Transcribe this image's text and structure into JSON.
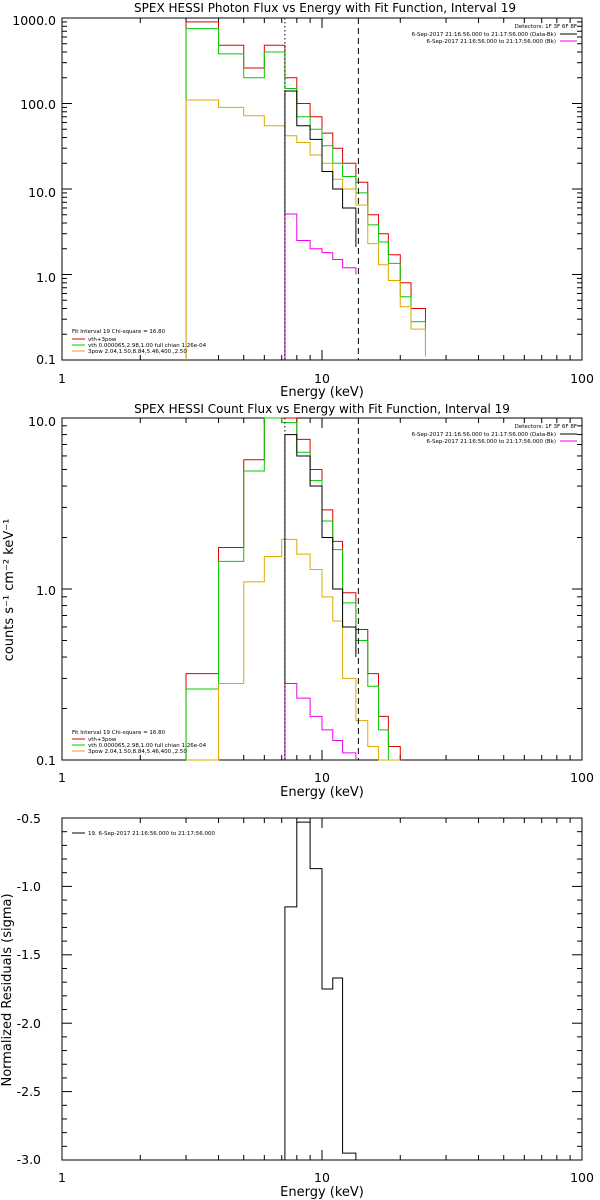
{
  "chart_data": [
    {
      "type": "line",
      "title": "SPEX HESSI Photon Flux vs Energy with Fit Function, Interval 19",
      "xlabel": "Energy (keV)",
      "ylabel": "",
      "xscale": "log",
      "yscale": "log",
      "xlim": [
        1,
        100
      ],
      "ylim": [
        0.1,
        1000.0
      ],
      "x_ticks": [
        "1",
        "10",
        "100"
      ],
      "y_ticks": [
        "0.1",
        "1.0",
        "10.0",
        "100.0",
        "1000.0"
      ],
      "info_top_right": [
        "Detectors: 1F 3F 6F 8F",
        "6-Sep-2017 21:16:56.000 to 21:17:56.000 (Data-Bk)",
        "6-Sep-2017 21:16:56.000 to 21:17:56.000 (Bk)"
      ],
      "fit_legend": [
        "Fit Interval 19   Chi-square = 16.80",
        "vth+3pow",
        "vth 0.000065,2.98,1.00   full chian 1.26e-04",
        "3pow 2.04,1.50,8.84,5.46,400.,2.50"
      ],
      "dotted_marker_kev": 7.2,
      "dashed_marker_kev": 13.8,
      "series": [
        {
          "name": "vth+3pow",
          "color": "#e00000",
          "edges": [
            3.0,
            4.0,
            5.0,
            6.0,
            7.2,
            8.0,
            9.0,
            10.0,
            11.0,
            12.0,
            13.5,
            15.0,
            16.5,
            18.0,
            20.0,
            22.0,
            25.0
          ],
          "values": [
            900,
            480,
            260,
            480,
            200,
            100,
            70,
            45,
            30,
            20,
            12,
            5.0,
            3.0,
            1.7,
            0.8,
            0.4,
            0.18
          ]
        },
        {
          "name": "vth",
          "color": "#00cc00",
          "edges": [
            3.0,
            4.0,
            5.0,
            6.0,
            7.2,
            8.0,
            9.0,
            10.0,
            11.0,
            12.0,
            13.5,
            15.0,
            16.5,
            18.0,
            20.0,
            22.0,
            25.0
          ],
          "values": [
            750,
            380,
            200,
            400,
            150,
            70,
            50,
            32,
            20,
            14,
            9,
            3.8,
            2.4,
            1.35,
            0.55,
            0.28,
            0.13
          ]
        },
        {
          "name": "3pow",
          "color": "#ddaa00",
          "edges": [
            3.0,
            4.0,
            5.0,
            6.0,
            7.2,
            8.0,
            9.0,
            10.0,
            11.0,
            12.0,
            13.5,
            15.0,
            16.5,
            18.0,
            20.0,
            22.0,
            25.0
          ],
          "values": [
            110,
            90,
            72,
            55,
            42,
            35,
            25,
            20,
            13,
            10,
            6.5,
            2.3,
            1.3,
            0.85,
            0.42,
            0.23,
            0.11
          ]
        },
        {
          "name": "Data-Bk",
          "color": "#000000",
          "edges": [
            7.2,
            8.0,
            9.0,
            10.0,
            11.0,
            12.0,
            13.5
          ],
          "values": [
            140,
            55,
            38,
            16,
            10,
            6,
            2.1
          ]
        },
        {
          "name": "Bk",
          "color": "#ee00ee",
          "edges": [
            7.2,
            8.0,
            9.0,
            10.0,
            11.0,
            12.0,
            13.5
          ],
          "values": [
            5.1,
            2.5,
            2.0,
            1.8,
            1.5,
            1.2,
            1.0
          ]
        }
      ]
    },
    {
      "type": "line",
      "title": "SPEX HESSI Count Flux vs Energy with Fit Function, Interval 19",
      "xlabel": "Energy (keV)",
      "ylabel": "counts s⁻¹ cm⁻² keV⁻¹",
      "xscale": "log",
      "yscale": "log",
      "xlim": [
        1,
        100
      ],
      "ylim": [
        0.1,
        10.0
      ],
      "x_ticks": [
        "1",
        "10",
        "100"
      ],
      "y_ticks": [
        "0.1",
        "1.0",
        "10.0"
      ],
      "info_top_right": [
        "Detectors: 1F 3F 6F 8F",
        "6-Sep-2017 21:16:56.000 to 21:17:56.000 (Data-Bk)",
        "6-Sep-2017 21:16:56.000 to 21:17:56.000 (Bk)"
      ],
      "fit_legend": [
        "Fit Interval 19   Chi-square = 16.80",
        "vth+3pow",
        "vth 0.000065,2.98,1.00   full chian 1.26e-04",
        "3pow 2.04,1.50,8.84,5.46,400.,2.50"
      ],
      "dotted_marker_kev": 7.2,
      "dashed_marker_kev": 13.8,
      "series": [
        {
          "name": "vth+3pow",
          "color": "#e00000",
          "edges": [
            3.0,
            4.0,
            5.0,
            6.0,
            7.0,
            8.0,
            9.0,
            10.0,
            11.0,
            12.0,
            13.5,
            15.0,
            16.5,
            18.0,
            20.0
          ],
          "values": [
            0.32,
            1.75,
            5.7,
            10.0,
            10.0,
            7.5,
            5.0,
            2.9,
            1.9,
            0.95,
            0.58,
            0.32,
            0.18,
            0.12
          ]
        },
        {
          "name": "vth",
          "color": "#00cc00",
          "edges": [
            3.0,
            4.0,
            5.0,
            6.0,
            7.0,
            8.0,
            9.0,
            10.0,
            11.0,
            12.0,
            13.5,
            15.0,
            16.5,
            18.0,
            20.0
          ],
          "values": [
            0.26,
            1.45,
            4.9,
            10.0,
            9.4,
            6.3,
            4.3,
            2.5,
            1.7,
            0.83,
            0.5,
            0.27,
            0.15,
            0.1
          ]
        },
        {
          "name": "3pow",
          "color": "#ddaa00",
          "edges": [
            3.0,
            4.0,
            5.0,
            6.0,
            7.0,
            8.0,
            9.0,
            10.0,
            11.0,
            12.0,
            13.5,
            15.0,
            16.5,
            18.0,
            20.0
          ],
          "values": [
            0.1,
            0.28,
            1.1,
            1.55,
            1.95,
            1.6,
            1.3,
            0.9,
            0.65,
            0.3,
            0.17,
            0.12,
            0.1,
            0.1
          ]
        },
        {
          "name": "Data-Bk",
          "color": "#000000",
          "edges": [
            7.2,
            8.0,
            9.0,
            10.0,
            11.0,
            12.0,
            13.5
          ],
          "values": [
            8.0,
            6.0,
            4.0,
            2.0,
            1.0,
            0.6,
            0.4
          ]
        },
        {
          "name": "Bk",
          "color": "#ee00ee",
          "edges": [
            7.2,
            8.0,
            9.0,
            10.0,
            11.0,
            12.0,
            13.5
          ],
          "values": [
            0.28,
            0.23,
            0.18,
            0.15,
            0.13,
            0.11,
            0.1
          ]
        }
      ]
    },
    {
      "type": "line",
      "title": "",
      "xlabel": "Energy (keV)",
      "ylabel": "Normalized Residuals (sigma)",
      "xscale": "log",
      "yscale": "linear",
      "xlim": [
        1,
        100
      ],
      "ylim": [
        -3.0,
        -0.5
      ],
      "x_ticks": [
        "1",
        "10",
        "100"
      ],
      "y_ticks": [
        "-3.0",
        "-2.5",
        "-2.0",
        "-1.5",
        "-1.0",
        "-0.5"
      ],
      "legend": "19.  6-Sep-2017 21:16:56.000 to 21:17:56.000",
      "series": [
        {
          "name": "19.  6-Sep-2017 21:16:56.000 to 21:17:56.000",
          "color": "#000000",
          "edges": [
            7.2,
            8.0,
            9.0,
            10.0,
            11.0,
            12.0,
            13.5
          ],
          "values": [
            -1.15,
            -0.53,
            -0.87,
            -1.75,
            -1.67,
            -2.95
          ]
        }
      ]
    }
  ]
}
